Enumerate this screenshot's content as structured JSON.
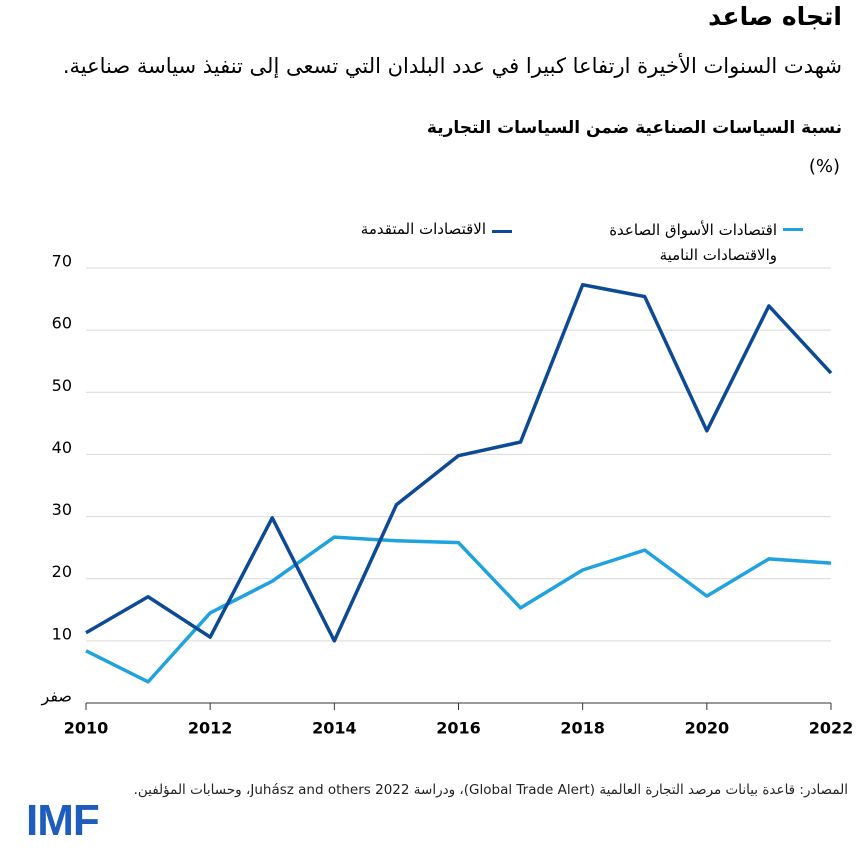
{
  "chart_data": {
    "type": "line",
    "title": "اتجاه صاعد",
    "subtitle": "شهدت السنوات الأخيرة ارتفاعا كبيرا في عدد البلدان التي تسعى إلى تنفيذ سياسة صناعية.",
    "y_label": "نسبة السياسات الصناعية ضمن السياسات التجارية",
    "unit": "(%)",
    "x": [
      2010,
      2011,
      2012,
      2013,
      2014,
      2015,
      2016,
      2017,
      2018,
      2019,
      2020,
      2021,
      2022
    ],
    "xlim": [
      2010,
      2022
    ],
    "xticks": [
      2010,
      2012,
      2014,
      2016,
      2018,
      2020,
      2022
    ],
    "ylim": [
      0,
      70
    ],
    "yticks": [
      {
        "value": 0,
        "label": "صفر"
      },
      10,
      20,
      30,
      40,
      50,
      60,
      70
    ],
    "grid": true,
    "series": [
      {
        "name": "الاقتصادات المتقدمة",
        "color": "#0d4a96",
        "values": [
          11.3,
          17.1,
          10.6,
          29.8,
          10.0,
          31.9,
          39.8,
          42.0,
          67.3,
          65.4,
          43.8,
          63.9,
          53.1
        ]
      },
      {
        "name": "اقتصادات الأسواق الصاعدة والاقتصادات النامية",
        "color": "#1fa2de",
        "values": [
          8.4,
          3.4,
          14.5,
          19.6,
          26.7,
          26.1,
          25.8,
          15.3,
          21.4,
          24.6,
          17.2,
          23.2,
          22.5
        ]
      }
    ],
    "source": "المصادر: قاعدة بيانات مرصد التجارة العالمية (Global Trade Alert)، ودراسة Juhász and others 2022، وحسابات المؤلفين.",
    "logo": "IMF"
  }
}
